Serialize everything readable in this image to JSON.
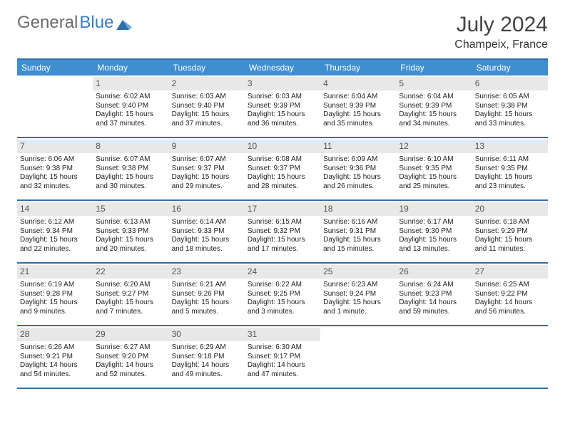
{
  "logo": {
    "part1": "General",
    "part2": "Blue"
  },
  "header": {
    "month": "July 2024",
    "location": "Champeix, France"
  },
  "daynames": [
    "Sunday",
    "Monday",
    "Tuesday",
    "Wednesday",
    "Thursday",
    "Friday",
    "Saturday"
  ],
  "colors": {
    "headerBlue": "#3e8ed0",
    "ruleBlue": "#2f6fab",
    "dayBg": "#e8e8e8"
  },
  "weeks": [
    [
      {
        "n": "",
        "t": ""
      },
      {
        "n": "1",
        "t": "Sunrise: 6:02 AM\nSunset: 9:40 PM\nDaylight: 15 hours and 37 minutes."
      },
      {
        "n": "2",
        "t": "Sunrise: 6:03 AM\nSunset: 9:40 PM\nDaylight: 15 hours and 37 minutes."
      },
      {
        "n": "3",
        "t": "Sunrise: 6:03 AM\nSunset: 9:39 PM\nDaylight: 15 hours and 36 minutes."
      },
      {
        "n": "4",
        "t": "Sunrise: 6:04 AM\nSunset: 9:39 PM\nDaylight: 15 hours and 35 minutes."
      },
      {
        "n": "5",
        "t": "Sunrise: 6:04 AM\nSunset: 9:39 PM\nDaylight: 15 hours and 34 minutes."
      },
      {
        "n": "6",
        "t": "Sunrise: 6:05 AM\nSunset: 9:38 PM\nDaylight: 15 hours and 33 minutes."
      }
    ],
    [
      {
        "n": "7",
        "t": "Sunrise: 6:06 AM\nSunset: 9:38 PM\nDaylight: 15 hours and 32 minutes."
      },
      {
        "n": "8",
        "t": "Sunrise: 6:07 AM\nSunset: 9:38 PM\nDaylight: 15 hours and 30 minutes."
      },
      {
        "n": "9",
        "t": "Sunrise: 6:07 AM\nSunset: 9:37 PM\nDaylight: 15 hours and 29 minutes."
      },
      {
        "n": "10",
        "t": "Sunrise: 6:08 AM\nSunset: 9:37 PM\nDaylight: 15 hours and 28 minutes."
      },
      {
        "n": "11",
        "t": "Sunrise: 6:09 AM\nSunset: 9:36 PM\nDaylight: 15 hours and 26 minutes."
      },
      {
        "n": "12",
        "t": "Sunrise: 6:10 AM\nSunset: 9:35 PM\nDaylight: 15 hours and 25 minutes."
      },
      {
        "n": "13",
        "t": "Sunrise: 6:11 AM\nSunset: 9:35 PM\nDaylight: 15 hours and 23 minutes."
      }
    ],
    [
      {
        "n": "14",
        "t": "Sunrise: 6:12 AM\nSunset: 9:34 PM\nDaylight: 15 hours and 22 minutes."
      },
      {
        "n": "15",
        "t": "Sunrise: 6:13 AM\nSunset: 9:33 PM\nDaylight: 15 hours and 20 minutes."
      },
      {
        "n": "16",
        "t": "Sunrise: 6:14 AM\nSunset: 9:33 PM\nDaylight: 15 hours and 18 minutes."
      },
      {
        "n": "17",
        "t": "Sunrise: 6:15 AM\nSunset: 9:32 PM\nDaylight: 15 hours and 17 minutes."
      },
      {
        "n": "18",
        "t": "Sunrise: 6:16 AM\nSunset: 9:31 PM\nDaylight: 15 hours and 15 minutes."
      },
      {
        "n": "19",
        "t": "Sunrise: 6:17 AM\nSunset: 9:30 PM\nDaylight: 15 hours and 13 minutes."
      },
      {
        "n": "20",
        "t": "Sunrise: 6:18 AM\nSunset: 9:29 PM\nDaylight: 15 hours and 11 minutes."
      }
    ],
    [
      {
        "n": "21",
        "t": "Sunrise: 6:19 AM\nSunset: 9:28 PM\nDaylight: 15 hours and 9 minutes."
      },
      {
        "n": "22",
        "t": "Sunrise: 6:20 AM\nSunset: 9:27 PM\nDaylight: 15 hours and 7 minutes."
      },
      {
        "n": "23",
        "t": "Sunrise: 6:21 AM\nSunset: 9:26 PM\nDaylight: 15 hours and 5 minutes."
      },
      {
        "n": "24",
        "t": "Sunrise: 6:22 AM\nSunset: 9:25 PM\nDaylight: 15 hours and 3 minutes."
      },
      {
        "n": "25",
        "t": "Sunrise: 6:23 AM\nSunset: 9:24 PM\nDaylight: 15 hours and 1 minute."
      },
      {
        "n": "26",
        "t": "Sunrise: 6:24 AM\nSunset: 9:23 PM\nDaylight: 14 hours and 59 minutes."
      },
      {
        "n": "27",
        "t": "Sunrise: 6:25 AM\nSunset: 9:22 PM\nDaylight: 14 hours and 56 minutes."
      }
    ],
    [
      {
        "n": "28",
        "t": "Sunrise: 6:26 AM\nSunset: 9:21 PM\nDaylight: 14 hours and 54 minutes."
      },
      {
        "n": "29",
        "t": "Sunrise: 6:27 AM\nSunset: 9:20 PM\nDaylight: 14 hours and 52 minutes."
      },
      {
        "n": "30",
        "t": "Sunrise: 6:29 AM\nSunset: 9:18 PM\nDaylight: 14 hours and 49 minutes."
      },
      {
        "n": "31",
        "t": "Sunrise: 6:30 AM\nSunset: 9:17 PM\nDaylight: 14 hours and 47 minutes."
      },
      {
        "n": "",
        "t": ""
      },
      {
        "n": "",
        "t": ""
      },
      {
        "n": "",
        "t": ""
      }
    ]
  ]
}
